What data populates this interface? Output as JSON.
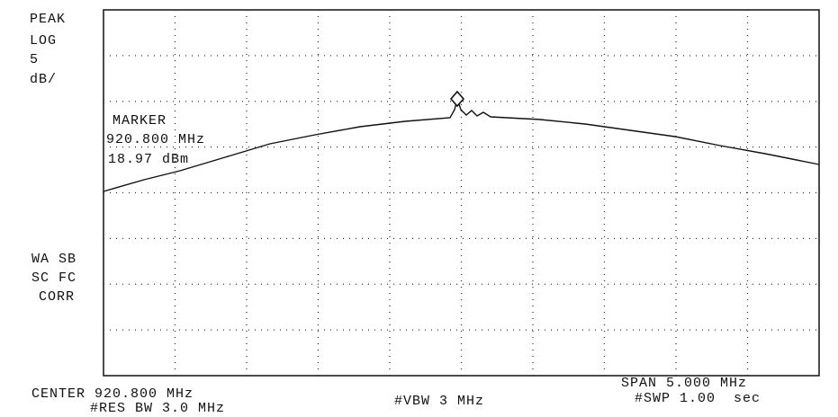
{
  "side_labels": [
    "PEAK",
    "LOG",
    "5",
    "dB/"
  ],
  "status_labels": [
    "WA SB",
    "SC FC",
    "CORR"
  ],
  "marker": {
    "title": "MARKER",
    "frequency": "920.800 MHz",
    "level": "18.97 dBm"
  },
  "footer": {
    "center": "CENTER 920.800 MHz",
    "res_bw": "#RES BW 3.0 MHz",
    "vbw": "#VBW 3 MHz",
    "span": "SPAN 5.000 MHz",
    "sweep": "#SWP 1.00  sec"
  }
}
